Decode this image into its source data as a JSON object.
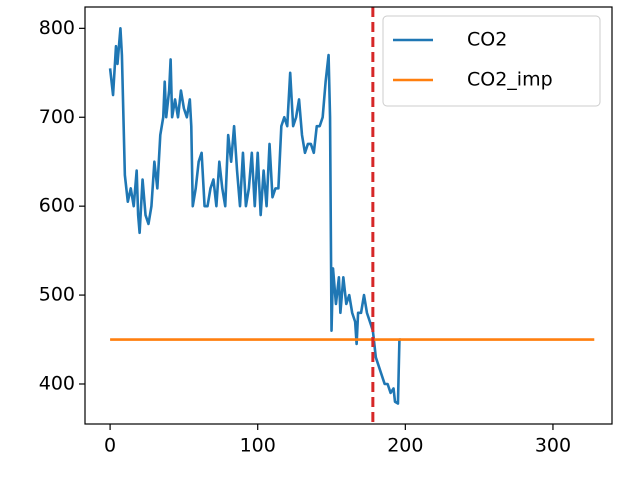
{
  "chart_data": {
    "type": "line",
    "series": [
      {
        "name": "CO2",
        "color": "#1f77b4",
        "x": [
          0,
          2,
          4,
          5,
          7,
          8,
          10,
          12,
          14,
          16,
          18,
          19,
          20,
          22,
          24,
          26,
          28,
          30,
          32,
          34,
          36,
          37,
          38,
          40,
          41,
          42,
          44,
          46,
          48,
          50,
          52,
          54,
          55,
          56,
          58,
          60,
          62,
          64,
          66,
          68,
          70,
          72,
          74,
          76,
          78,
          80,
          82,
          84,
          86,
          88,
          90,
          92,
          94,
          96,
          98,
          100,
          102,
          104,
          106,
          108,
          110,
          112,
          114,
          116,
          118,
          120,
          122,
          124,
          126,
          128,
          130,
          132,
          134,
          136,
          138,
          140,
          142,
          144,
          146,
          148,
          149,
          150,
          151,
          153,
          155,
          156,
          158,
          160,
          162,
          164,
          166,
          167,
          168,
          170,
          172,
          174,
          176,
          178,
          180,
          182,
          184,
          186,
          188,
          190,
          192,
          193,
          195,
          196,
          197
        ],
        "values": [
          755,
          725,
          780,
          760,
          800,
          770,
          635,
          605,
          620,
          600,
          640,
          590,
          570,
          630,
          590,
          580,
          600,
          650,
          620,
          680,
          700,
          740,
          700,
          730,
          765,
          700,
          720,
          700,
          730,
          710,
          700,
          720,
          690,
          600,
          620,
          650,
          660,
          600,
          600,
          620,
          630,
          600,
          650,
          620,
          600,
          680,
          650,
          690,
          640,
          600,
          660,
          600,
          620,
          660,
          600,
          660,
          590,
          640,
          600,
          670,
          610,
          620,
          620,
          690,
          700,
          690,
          750,
          690,
          700,
          720,
          680,
          660,
          670,
          670,
          660,
          690,
          690,
          700,
          740,
          770,
          700,
          460,
          530,
          490,
          520,
          480,
          520,
          490,
          500,
          480,
          470,
          445,
          480,
          480,
          500,
          480,
          470,
          460,
          430,
          420,
          410,
          400,
          400,
          390,
          395,
          380,
          378,
          450,
          450
        ]
      },
      {
        "name": "CO2_imp",
        "color": "#ff7f0e",
        "x": [
          0,
          328
        ],
        "values": [
          450,
          450
        ]
      }
    ],
    "vline": {
      "x": 178,
      "color": "#d62728"
    },
    "xlim": [
      -17,
      340
    ],
    "xticks": [
      0,
      100,
      200,
      300
    ],
    "ylim": [
      355,
      824
    ],
    "yticks": [
      400,
      500,
      600,
      700,
      800
    ],
    "legend": "upper right"
  }
}
